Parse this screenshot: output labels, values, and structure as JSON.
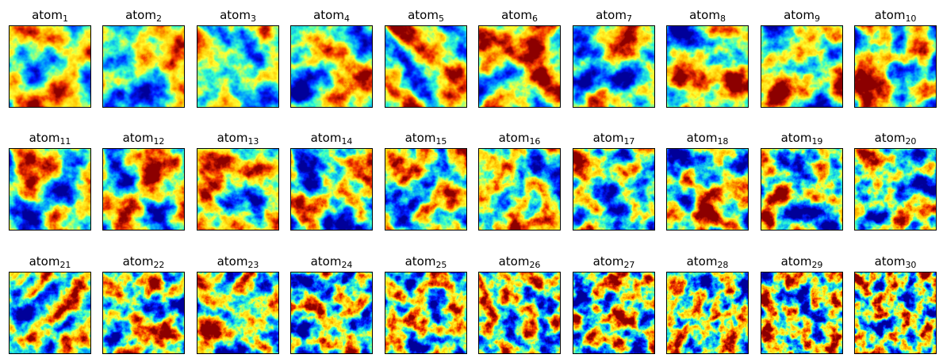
{
  "figure": {
    "rows": 3,
    "cols": 10,
    "colormap": "jet",
    "atoms": [
      {
        "name": "atom",
        "index": "1"
      },
      {
        "name": "atom",
        "index": "2"
      },
      {
        "name": "atom",
        "index": "3"
      },
      {
        "name": "atom",
        "index": "4"
      },
      {
        "name": "atom",
        "index": "5"
      },
      {
        "name": "atom",
        "index": "6"
      },
      {
        "name": "atom",
        "index": "7"
      },
      {
        "name": "atom",
        "index": "8"
      },
      {
        "name": "atom",
        "index": "9"
      },
      {
        "name": "atom",
        "index": "10"
      },
      {
        "name": "atom",
        "index": "11"
      },
      {
        "name": "atom",
        "index": "12"
      },
      {
        "name": "atom",
        "index": "13"
      },
      {
        "name": "atom",
        "index": "14"
      },
      {
        "name": "atom",
        "index": "15"
      },
      {
        "name": "atom",
        "index": "16"
      },
      {
        "name": "atom",
        "index": "17"
      },
      {
        "name": "atom",
        "index": "18"
      },
      {
        "name": "atom",
        "index": "19"
      },
      {
        "name": "atom",
        "index": "20"
      },
      {
        "name": "atom",
        "index": "21"
      },
      {
        "name": "atom",
        "index": "22"
      },
      {
        "name": "atom",
        "index": "23"
      },
      {
        "name": "atom",
        "index": "24"
      },
      {
        "name": "atom",
        "index": "25"
      },
      {
        "name": "atom",
        "index": "26"
      },
      {
        "name": "atom",
        "index": "27"
      },
      {
        "name": "atom",
        "index": "28"
      },
      {
        "name": "atom",
        "index": "29"
      },
      {
        "name": "atom",
        "index": "30"
      }
    ]
  }
}
